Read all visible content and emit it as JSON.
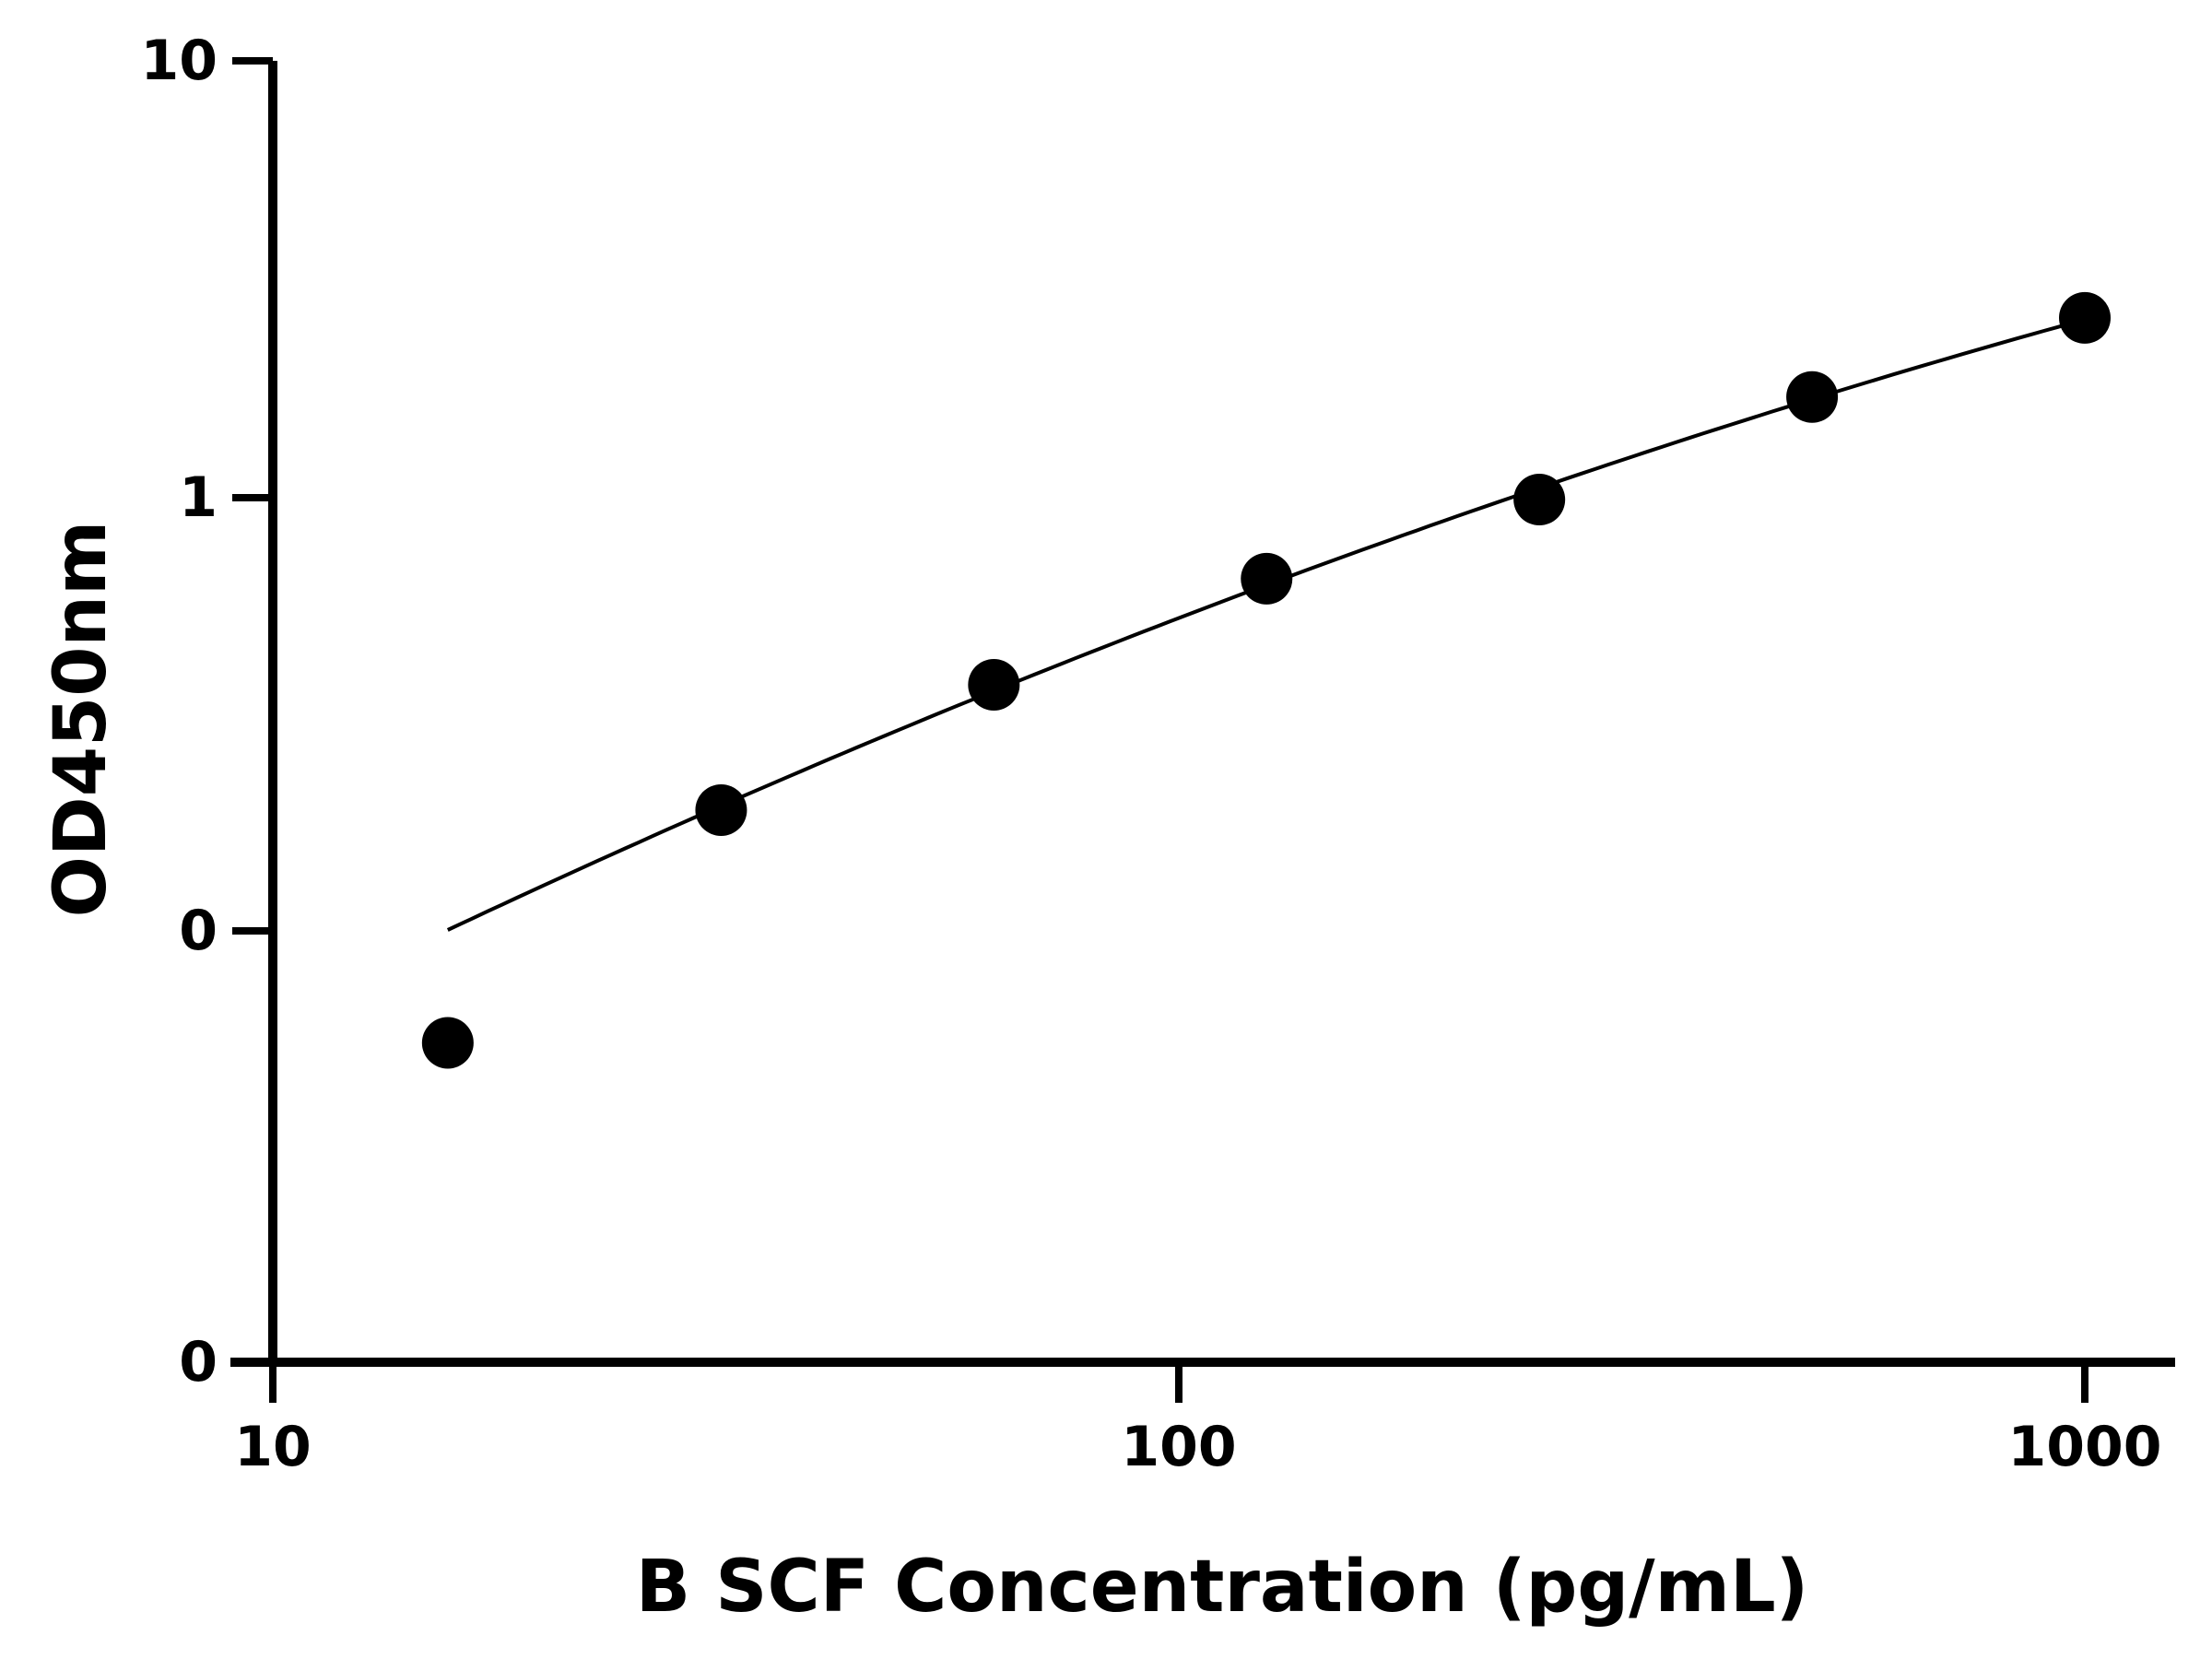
{
  "chart_data": {
    "type": "scatter",
    "title": "",
    "xlabel": "B SCF Concentration (pg/mL)",
    "ylabel": "OD450nm",
    "x_scale": "log",
    "xlim": [
      10,
      1000
    ],
    "x_ticks": [
      {
        "value": 10,
        "label": "10"
      },
      {
        "value": 100,
        "label": "100"
      },
      {
        "value": 1000,
        "label": "1000"
      }
    ],
    "y_scale": "log",
    "y_ticks": [
      {
        "value": 0.01,
        "label": "0"
      },
      {
        "value": 0.1,
        "label": "0"
      },
      {
        "value": 1,
        "label": "1"
      },
      {
        "value": 10,
        "label": "10"
      }
    ],
    "ylim": [
      0.01,
      10
    ],
    "grid": false,
    "legend": "none",
    "series": [
      {
        "x": [
          15.6,
          31.25,
          62.5,
          125,
          250,
          500,
          1000
        ],
        "y": [
          0.055,
          0.19,
          0.37,
          0.65,
          0.99,
          1.7,
          2.58
        ],
        "marker": "circle",
        "color": "#000000"
      }
    ],
    "fit_curve": {
      "x_range": [
        15.6,
        1000
      ],
      "color": "#000000"
    }
  }
}
